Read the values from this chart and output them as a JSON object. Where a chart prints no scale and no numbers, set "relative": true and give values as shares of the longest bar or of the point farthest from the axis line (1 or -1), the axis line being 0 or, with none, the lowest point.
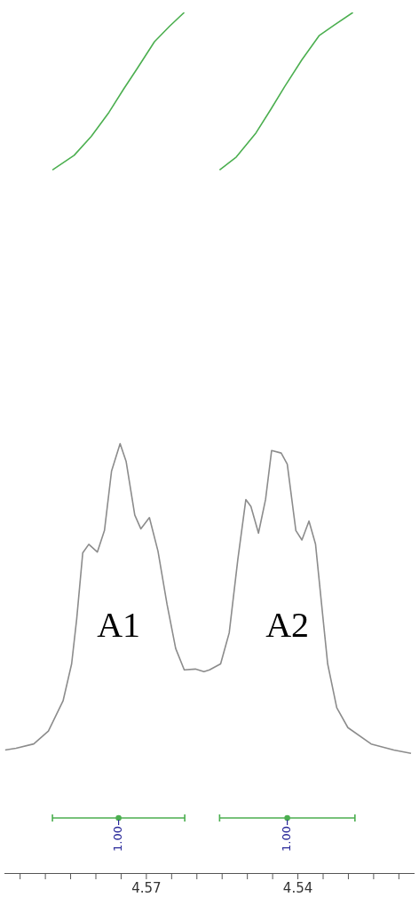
{
  "chart_data": {
    "type": "line",
    "relative": true,
    "line_style": "solid",
    "grid": false,
    "legend": false,
    "xlim": [
      4.598,
      4.517
    ],
    "xticks": [
      {
        "value": 4.595,
        "label": null
      },
      {
        "value": 4.59,
        "label": null
      },
      {
        "value": 4.585,
        "label": null
      },
      {
        "value": 4.58,
        "label": null
      },
      {
        "value": 4.575,
        "label": null
      },
      4.57,
      {
        "value": 4.565,
        "label": null
      },
      {
        "value": 4.56,
        "label": null
      },
      {
        "value": 4.555,
        "label": null
      },
      {
        "value": 4.55,
        "label": null
      },
      {
        "value": 4.545,
        "label": null
      },
      4.54,
      {
        "value": 4.535,
        "label": null
      },
      {
        "value": 4.53,
        "label": null
      },
      {
        "value": 4.525,
        "label": null
      },
      {
        "value": 4.52,
        "label": null
      }
    ],
    "series": [
      {
        "color": "#8c8c8c",
        "x": [
          4.598,
          4.5958,
          4.5923,
          4.5894,
          4.5865,
          4.5848,
          4.5838,
          4.5826,
          4.5814,
          4.5797,
          4.5783,
          4.5769,
          4.5752,
          4.574,
          4.5723,
          4.5711,
          4.5694,
          4.5677,
          4.5659,
          4.5642,
          4.5625,
          4.5603,
          4.5586,
          4.5575,
          4.5553,
          4.5536,
          4.5519,
          4.5503,
          4.5493,
          4.5478,
          4.5464,
          4.5452,
          4.5433,
          4.5421,
          4.5404,
          4.5392,
          4.5378,
          4.5365,
          4.5353,
          4.5341,
          4.5323,
          4.5301,
          4.5255,
          4.521,
          4.5176
        ],
        "values": [
          0.143,
          0.145,
          0.15,
          0.165,
          0.2,
          0.243,
          0.295,
          0.372,
          0.382,
          0.373,
          0.398,
          0.467,
          0.499,
          0.478,
          0.416,
          0.4,
          0.413,
          0.374,
          0.312,
          0.261,
          0.236,
          0.237,
          0.234,
          0.236,
          0.243,
          0.279,
          0.364,
          0.434,
          0.426,
          0.395,
          0.434,
          0.491,
          0.488,
          0.475,
          0.398,
          0.387,
          0.409,
          0.382,
          0.312,
          0.243,
          0.192,
          0.169,
          0.15,
          0.143,
          0.139
        ]
      },
      {
        "color": "#4caf50",
        "x": [
          4.5886,
          4.5843,
          4.5809,
          4.5774,
          4.5745,
          4.5718,
          4.5684,
          4.5654,
          4.5625
        ],
        "values": [
          0.817,
          0.834,
          0.856,
          0.884,
          0.911,
          0.935,
          0.966,
          0.984,
          1.0
        ]
      },
      {
        "color": "#4caf50",
        "x": [
          4.5555,
          4.5522,
          4.5483,
          4.5454,
          4.5426,
          4.5392,
          4.5358,
          4.5329,
          4.5291
        ],
        "values": [
          0.817,
          0.832,
          0.86,
          0.887,
          0.914,
          0.945,
          0.973,
          0.985,
          1.0
        ]
      },
      {
        "type": "scatter",
        "color": "#4caf50",
        "x": [
          4.5755,
          4.5421
        ],
        "values": [
          0.064,
          0.064
        ],
        "xerrors": [
          [
            4.5624,
            4.5886
          ],
          [
            4.5287,
            4.5555
          ]
        ]
      }
    ],
    "annotations": [
      "A1",
      "A2",
      {
        "text": "1.00",
        "x": 4.5755,
        "y": 0.064
      },
      {
        "text": "1.00",
        "x": 4.5421,
        "y": 0.064
      }
    ]
  }
}
